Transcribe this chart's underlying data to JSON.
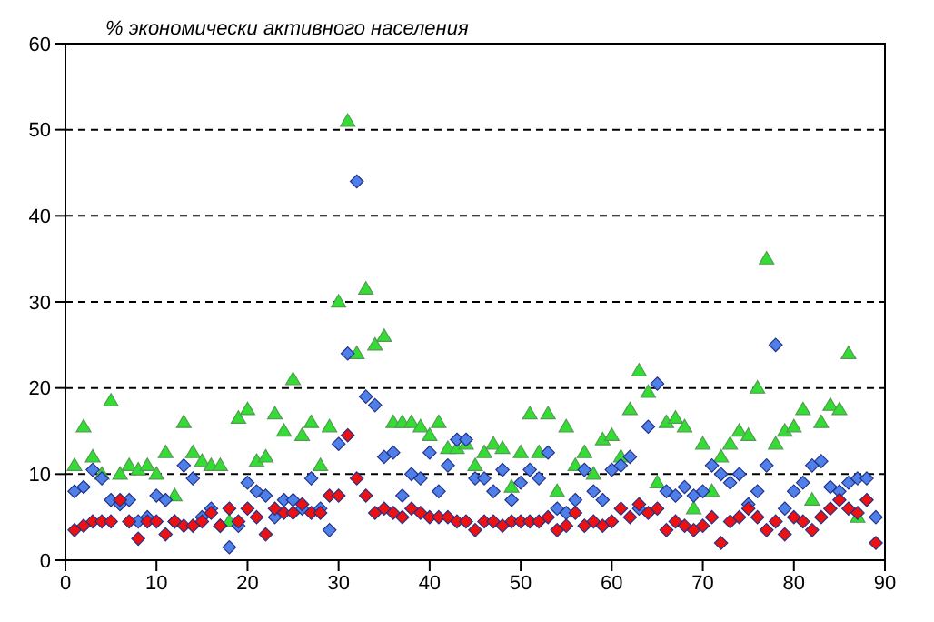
{
  "chart_data": {
    "type": "scatter",
    "ylabel": "% экономически активного населения",
    "xlim": [
      0,
      90
    ],
    "xticks": [
      0,
      10,
      20,
      30,
      40,
      50,
      60,
      70,
      80,
      90
    ],
    "ylim": [
      0,
      60
    ],
    "yticks": [
      0,
      10,
      20,
      30,
      40,
      50,
      60
    ],
    "grid": "y",
    "legend": false,
    "x": [
      1,
      2,
      3,
      4,
      5,
      6,
      7,
      8,
      9,
      10,
      11,
      12,
      13,
      14,
      15,
      16,
      17,
      18,
      19,
      20,
      21,
      22,
      23,
      24,
      25,
      26,
      27,
      28,
      29,
      30,
      31,
      32,
      33,
      34,
      35,
      36,
      37,
      38,
      39,
      40,
      41,
      42,
      43,
      44,
      45,
      46,
      47,
      48,
      49,
      50,
      51,
      52,
      53,
      54,
      55,
      56,
      57,
      58,
      59,
      60,
      61,
      62,
      63,
      64,
      65,
      66,
      67,
      68,
      69,
      70,
      71,
      72,
      73,
      74,
      75,
      76,
      77,
      78,
      79,
      80,
      81,
      82,
      83,
      84,
      85,
      86,
      87,
      88,
      89
    ],
    "series": [
      {
        "color": "#33dd33",
        "marker": "triangle",
        "values": [
          11,
          15.5,
          12,
          10,
          18.5,
          10,
          11,
          10.5,
          11,
          10,
          12.5,
          7.5,
          16,
          12.5,
          11.5,
          11,
          11,
          4.5,
          16.5,
          17.5,
          11.5,
          12,
          17,
          15,
          21,
          14.5,
          16,
          11,
          15.5,
          30,
          51,
          24,
          31.5,
          25,
          26,
          16,
          16,
          16,
          15.5,
          14.5,
          16,
          13,
          13,
          13.5,
          11,
          12.5,
          13.5,
          13,
          8.5,
          12.5,
          17,
          12.5,
          17,
          8,
          15.5,
          11,
          12.5,
          10,
          14,
          14.5,
          12,
          17.5,
          22,
          19.5,
          9,
          16,
          16.5,
          15.5,
          6,
          13.5,
          8,
          12,
          13.5,
          15,
          14.5,
          20,
          35,
          13.5,
          15,
          15.5,
          17.5,
          7,
          16,
          18,
          17.5,
          24,
          5,
          null,
          null
        ]
      },
      {
        "color": "#4f7fe8",
        "marker": "diamond",
        "values": [
          8,
          8.5,
          10.5,
          9.5,
          7,
          6.5,
          7,
          4.5,
          5,
          7.5,
          7,
          4.5,
          11,
          9.5,
          5,
          6,
          4,
          1.5,
          4,
          9,
          8,
          7.5,
          5,
          7,
          7,
          6,
          9.5,
          6,
          3.5,
          13.5,
          24,
          44,
          19,
          18,
          12,
          12.5,
          7.5,
          10,
          9.5,
          12.5,
          8,
          11,
          14,
          14,
          9.5,
          9.5,
          8,
          10.5,
          7,
          9,
          10.5,
          9.5,
          12.5,
          6,
          5.5,
          7,
          10.5,
          8,
          7,
          10.5,
          11,
          12,
          6,
          15.5,
          20.5,
          8,
          7.5,
          8.5,
          7.5,
          8,
          11,
          10,
          9,
          10,
          6.5,
          8,
          11,
          25,
          6,
          8,
          9,
          11,
          11.5,
          8.5,
          8,
          9,
          9.5,
          9.5,
          5
        ]
      },
      {
        "color": "#ee1111",
        "marker": "diamond",
        "values": [
          3.5,
          4,
          4.5,
          4.5,
          4.5,
          7,
          4.5,
          2.5,
          4.5,
          4.5,
          3,
          4.5,
          4,
          4,
          4.5,
          5.5,
          4,
          6,
          4.5,
          6,
          5,
          3,
          6,
          5.5,
          5.5,
          6.5,
          5.5,
          5.5,
          7.5,
          7.5,
          14.5,
          9.5,
          7.5,
          5.5,
          6,
          5.5,
          5,
          6,
          5.5,
          5,
          5,
          5,
          4.5,
          4.5,
          3.5,
          4.5,
          4.5,
          4,
          4.5,
          4.5,
          4.5,
          4.5,
          5,
          3.5,
          4,
          5.5,
          4,
          4.5,
          4,
          4.5,
          6,
          5,
          6.5,
          5.5,
          6,
          3.5,
          4.5,
          4,
          3.5,
          4,
          5,
          2,
          4.5,
          5,
          6,
          5,
          3.5,
          4.5,
          3,
          5,
          4.5,
          3.5,
          5,
          6,
          7,
          6,
          5.5,
          7,
          2
        ]
      }
    ]
  }
}
